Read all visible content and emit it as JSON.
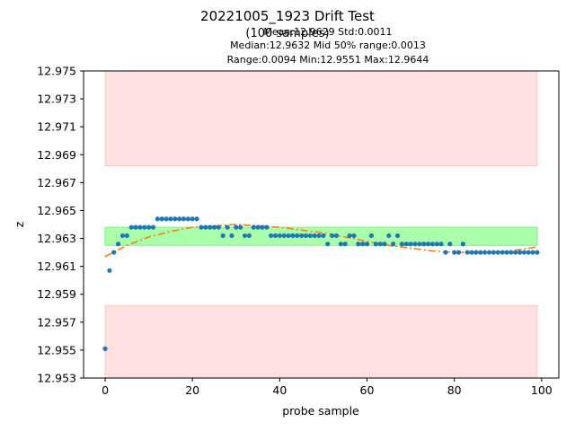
{
  "chart_data": {
    "type": "scatter",
    "title": "20221005_1923 Drift Test",
    "subtitle": "(100 samples)",
    "stats": {
      "line1": "Mean:12.9629  Std:0.0011",
      "line2": "Median:12.9632  Mid 50% range:0.0013",
      "line3": "Range:0.0094  Min:12.9551  Max:12.9644"
    },
    "xlabel": "probe sample",
    "ylabel": "z",
    "xlim": [
      -4.95,
      103.95
    ],
    "ylim": [
      12.953,
      12.975
    ],
    "xticks": [
      0,
      20,
      40,
      60,
      80,
      100
    ],
    "yticks": [
      "12.953",
      "12.955",
      "12.957",
      "12.959",
      "12.961",
      "12.963",
      "12.965",
      "12.967",
      "12.969",
      "12.971",
      "12.973",
      "12.975"
    ],
    "grid": false,
    "bands": [
      {
        "name": "upper-limit-band",
        "x": [
          0,
          99
        ],
        "y": [
          12.9682,
          12.975
        ],
        "color": "#ffe0e0",
        "edge": "#ffc8c8"
      },
      {
        "name": "lower-limit-band",
        "x": [
          0,
          99
        ],
        "y": [
          12.953,
          12.9582
        ],
        "color": "#ffe0e0",
        "edge": "#ffc8c8"
      },
      {
        "name": "mid-50-band",
        "x": [
          0,
          99
        ],
        "y": [
          12.9625,
          12.9638
        ],
        "color": "#aaffaa",
        "edge": "#88ee88"
      }
    ],
    "series": [
      {
        "kind": "points",
        "color": "#1f77b4",
        "x": [
          0,
          1,
          2,
          3,
          4,
          5,
          6,
          7,
          8,
          9,
          10,
          11,
          12,
          13,
          14,
          15,
          16,
          17,
          18,
          19,
          20,
          21,
          22,
          23,
          24,
          25,
          26,
          27,
          28,
          29,
          30,
          31,
          32,
          33,
          34,
          35,
          36,
          37,
          38,
          39,
          40,
          41,
          42,
          43,
          44,
          45,
          46,
          47,
          48,
          49,
          50,
          51,
          52,
          53,
          54,
          55,
          56,
          57,
          58,
          59,
          60,
          61,
          62,
          63,
          64,
          65,
          66,
          67,
          68,
          69,
          70,
          71,
          72,
          73,
          74,
          75,
          76,
          77,
          78,
          79,
          80,
          81,
          82,
          83,
          84,
          85,
          86,
          87,
          88,
          89,
          90,
          91,
          92,
          93,
          94,
          95,
          96,
          97,
          98,
          99
        ],
        "y": [
          12.9551,
          12.9607,
          12.962,
          12.9626,
          12.9632,
          12.9632,
          12.9638,
          12.9638,
          12.9638,
          12.9638,
          12.9638,
          12.9638,
          12.9644,
          12.9644,
          12.9644,
          12.9644,
          12.9644,
          12.9644,
          12.9644,
          12.9644,
          12.9644,
          12.9644,
          12.9638,
          12.9638,
          12.9638,
          12.9638,
          12.9638,
          12.9632,
          12.9638,
          12.9632,
          12.9638,
          12.9638,
          12.9632,
          12.9632,
          12.9638,
          12.9638,
          12.9638,
          12.9638,
          12.9632,
          12.9632,
          12.9632,
          12.9632,
          12.9632,
          12.9632,
          12.9632,
          12.9632,
          12.9632,
          12.9632,
          12.9632,
          12.9632,
          12.9632,
          12.9626,
          12.9632,
          12.9632,
          12.9626,
          12.9626,
          12.9632,
          12.9632,
          12.9626,
          12.9626,
          12.9626,
          12.9632,
          12.9626,
          12.9626,
          12.9626,
          12.9632,
          12.9626,
          12.9632,
          12.9626,
          12.9626,
          12.9626,
          12.9626,
          12.9626,
          12.9626,
          12.9626,
          12.9626,
          12.9626,
          12.9626,
          12.962,
          12.9626,
          12.962,
          12.962,
          12.9626,
          12.962,
          12.962,
          12.962,
          12.962,
          12.962,
          12.962,
          12.962,
          12.962,
          12.962,
          12.962,
          12.962,
          12.962,
          12.962,
          12.962,
          12.962,
          12.962,
          12.962
        ]
      },
      {
        "kind": "fit-line",
        "color": "#ff7f0e",
        "style": "dash-dot",
        "x": [
          0,
          5,
          10,
          15,
          20,
          25,
          30,
          35,
          40,
          45,
          50,
          55,
          60,
          65,
          70,
          75,
          80,
          85,
          90,
          95,
          99
        ],
        "y": [
          12.9617,
          12.9625,
          12.9631,
          12.9635,
          12.9638,
          12.9639,
          12.964,
          12.9639,
          12.9638,
          12.9636,
          12.9634,
          12.9631,
          12.9628,
          12.9625,
          12.9623,
          12.9621,
          12.962,
          12.962,
          12.962,
          12.9622,
          12.9624
        ]
      }
    ]
  }
}
